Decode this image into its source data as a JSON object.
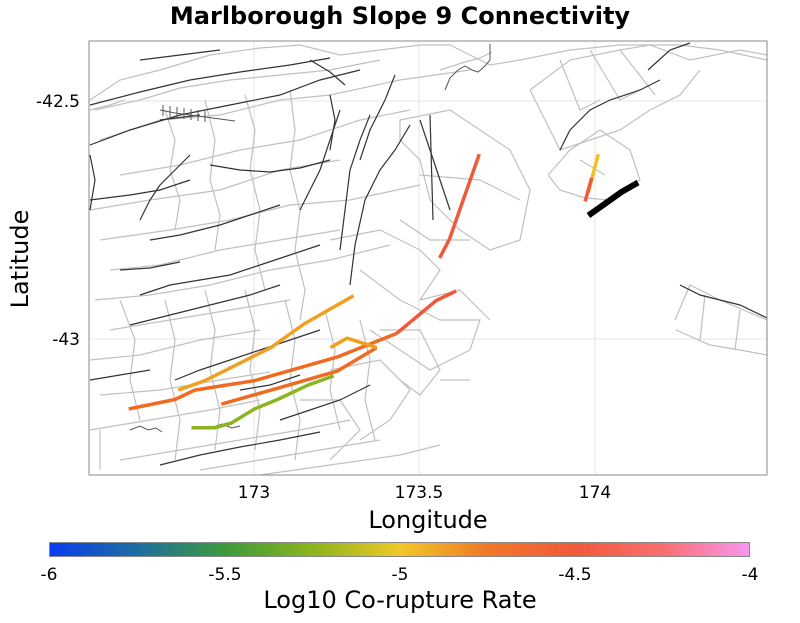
{
  "chart": {
    "title": "Marlborough Slope 9 Connectivity",
    "x_label": "Longitude",
    "y_label": "Latitude",
    "x_ticks": [
      "173",
      "173.5",
      "174"
    ],
    "y_ticks": [
      "-42.5",
      "-43"
    ],
    "colorbar": {
      "label": "Log10 Co-rupture Rate",
      "ticks": [
        "-6",
        "-5.5",
        "-5",
        "-4.5",
        "-4"
      ],
      "colors": [
        "#0a3cf0",
        "#1e6ea0",
        "#3c9a3c",
        "#8cb41e",
        "#f0c828",
        "#f07828",
        "#f05a3c",
        "#f86e6e",
        "#f896f0"
      ]
    }
  },
  "chart_data": {
    "type": "map",
    "title": "Marlborough Slope 9 Connectivity",
    "xlabel": "Longitude",
    "ylabel": "Latitude",
    "xlim": [
      172.5,
      174.55
    ],
    "ylim": [
      -43.29,
      -42.37
    ],
    "colorbar": {
      "label": "Log10 Co-rupture Rate",
      "range": [
        -6,
        -4
      ]
    },
    "highlighted_sections": [
      {
        "name": "source-section",
        "color": "#000000",
        "points": [
          [
            174.01,
            -42.74
          ],
          [
            174.11,
            -42.69
          ],
          [
            174.16,
            -42.67
          ]
        ]
      },
      {
        "name": "rupture-1",
        "color": "#f0c020",
        "points": [
          [
            174.04,
            -42.61
          ],
          [
            174.01,
            -42.69
          ]
        ]
      },
      {
        "name": "rupture-2",
        "color": "#f05a3c",
        "points": [
          [
            174.0,
            -42.71
          ],
          [
            174.02,
            -42.66
          ]
        ]
      },
      {
        "name": "rupture-3",
        "color": "#f05a3c",
        "points": [
          [
            173.68,
            -42.61
          ],
          [
            173.63,
            -42.71
          ],
          [
            173.59,
            -42.79
          ],
          [
            173.56,
            -42.83
          ]
        ]
      },
      {
        "name": "rupture-4",
        "color": "#f05a3c",
        "points": [
          [
            173.61,
            -42.9
          ],
          [
            173.55,
            -42.92
          ],
          [
            173.43,
            -42.99
          ]
        ]
      },
      {
        "name": "rupture-5",
        "color": "#f06a20",
        "points": [
          [
            173.43,
            -42.99
          ],
          [
            173.25,
            -43.04
          ],
          [
            173.0,
            -43.09
          ],
          [
            172.82,
            -43.11
          ],
          [
            172.76,
            -43.13
          ],
          [
            172.62,
            -43.15
          ]
        ]
      },
      {
        "name": "rupture-6",
        "color": "#f0a020",
        "points": [
          [
            173.3,
            -42.91
          ],
          [
            173.15,
            -42.97
          ],
          [
            173.05,
            -43.02
          ],
          [
            172.85,
            -43.09
          ],
          [
            172.77,
            -43.11
          ]
        ]
      },
      {
        "name": "rupture-7",
        "color": "#f06a20",
        "points": [
          [
            173.37,
            -43.02
          ],
          [
            173.25,
            -43.07
          ],
          [
            173.1,
            -43.1
          ],
          [
            172.9,
            -43.14
          ]
        ]
      },
      {
        "name": "rupture-8",
        "color": "#f0a020",
        "points": [
          [
            173.23,
            -43.02
          ],
          [
            173.28,
            -43.0
          ],
          [
            173.37,
            -43.02
          ]
        ]
      },
      {
        "name": "rupture-9",
        "color": "#8cb420",
        "points": [
          [
            173.24,
            -43.08
          ],
          [
            173.16,
            -43.1
          ],
          [
            173.07,
            -43.13
          ],
          [
            173.0,
            -43.15
          ],
          [
            172.93,
            -43.18
          ],
          [
            172.88,
            -43.19
          ],
          [
            172.81,
            -43.19
          ]
        ]
      }
    ]
  }
}
